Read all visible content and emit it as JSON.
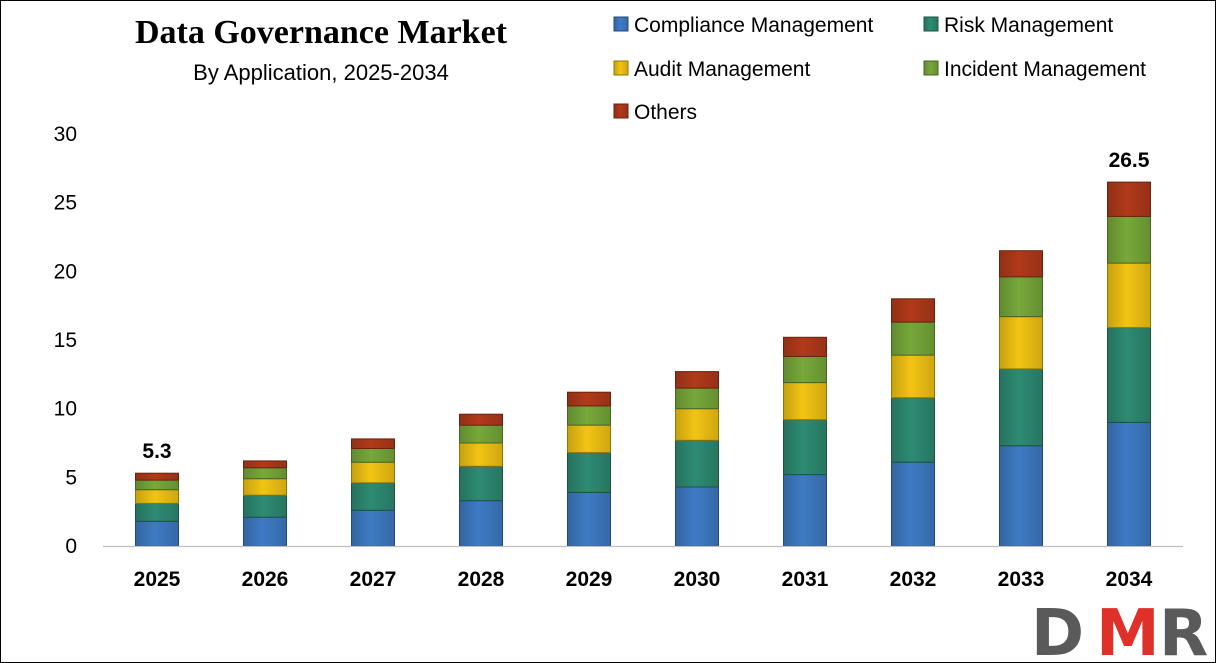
{
  "chart_data": {
    "type": "bar",
    "stacked": true,
    "title": "Data Governance Market",
    "subtitle": "By Application, 2025-2034",
    "categories": [
      "2025",
      "2026",
      "2027",
      "2028",
      "2029",
      "2030",
      "2031",
      "2032",
      "2033",
      "2034"
    ],
    "series": [
      {
        "name": "Compliance Management",
        "color": "#3E7BC4",
        "values": [
          1.8,
          2.1,
          2.6,
          3.3,
          3.9,
          4.3,
          5.2,
          6.1,
          7.3,
          9.0
        ]
      },
      {
        "name": "Risk Management",
        "color": "#2E8B73",
        "values": [
          1.3,
          1.6,
          2.0,
          2.5,
          2.9,
          3.4,
          4.0,
          4.7,
          5.6,
          6.9
        ]
      },
      {
        "name": "Audit Management",
        "color": "#F2C413",
        "values": [
          1.0,
          1.2,
          1.5,
          1.7,
          2.0,
          2.3,
          2.7,
          3.1,
          3.8,
          4.7
        ]
      },
      {
        "name": "Incident Management",
        "color": "#77A83A",
        "values": [
          0.7,
          0.8,
          1.0,
          1.3,
          1.4,
          1.5,
          1.9,
          2.4,
          2.9,
          3.4
        ]
      },
      {
        "name": "Others",
        "color": "#B13A1A",
        "values": [
          0.5,
          0.5,
          0.7,
          0.8,
          1.0,
          1.2,
          1.4,
          1.7,
          1.9,
          2.5
        ]
      }
    ],
    "ylim": [
      0,
      30
    ],
    "yticks": [
      0,
      5,
      10,
      15,
      20,
      25,
      30
    ],
    "data_labels": [
      {
        "category": "2025",
        "text": "5.3",
        "value": 5.3
      },
      {
        "category": "2034",
        "text": "26.5",
        "value": 26.5
      }
    ],
    "grid": false,
    "legend_position": "top-right"
  },
  "logo": {
    "text": "DMR",
    "letter_color_dark": "#5A5A5A",
    "letter_color_accent": "#E0302A"
  }
}
